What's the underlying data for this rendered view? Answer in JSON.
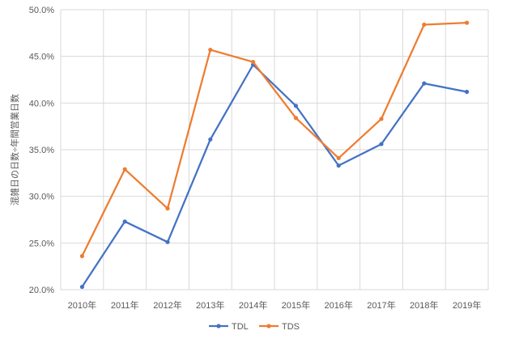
{
  "chart_data": {
    "type": "line",
    "title": "",
    "xlabel": "",
    "ylabel": "混雑日の日数÷年間営業日数",
    "categories": [
      "2010年",
      "2011年",
      "2012年",
      "2013年",
      "2014年",
      "2015年",
      "2016年",
      "2017年",
      "2018年",
      "2019年"
    ],
    "ylim": [
      0.2,
      0.5
    ],
    "yticks": [
      0.2,
      0.25,
      0.3,
      0.35,
      0.4,
      0.45,
      0.5
    ],
    "ytick_labels": [
      "20.0%",
      "25.0%",
      "30.0%",
      "35.0%",
      "40.0%",
      "45.0%",
      "50.0%"
    ],
    "grid": "vertical and horizontal",
    "legend_position": "bottom",
    "series": [
      {
        "name": "TDL",
        "color": "#4472C4",
        "values": [
          0.203,
          0.273,
          0.251,
          0.361,
          0.441,
          0.397,
          0.333,
          0.356,
          0.421,
          0.412
        ]
      },
      {
        "name": "TDS",
        "color": "#ED7D31",
        "values": [
          0.236,
          0.329,
          0.287,
          0.457,
          0.444,
          0.384,
          0.341,
          0.383,
          0.484,
          0.486
        ]
      }
    ]
  }
}
